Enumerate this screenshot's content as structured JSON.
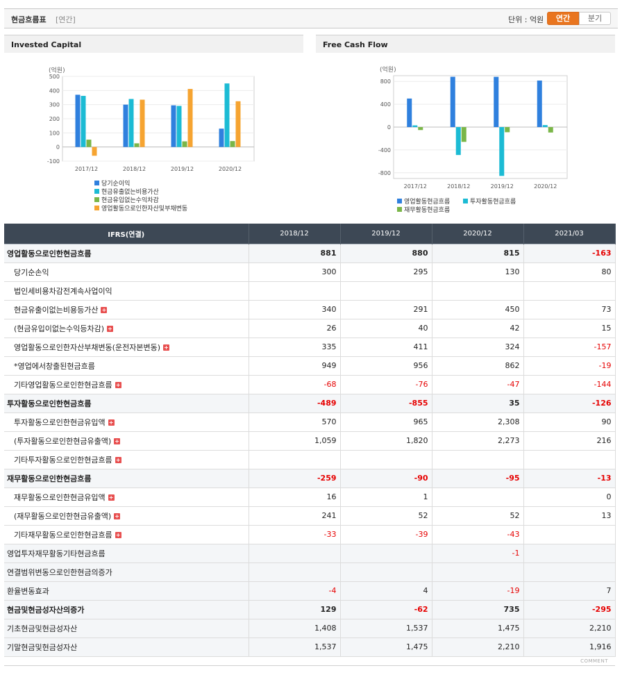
{
  "header": {
    "title": "현금흐름표",
    "period": "[연간]",
    "unit_label": "단위 : 억원",
    "toggle_annual": "연간",
    "toggle_quarter": "분기"
  },
  "colors": {
    "blue": "#2f80de",
    "cyan": "#1cbbd4",
    "green": "#7ab648",
    "orange": "#f6a431",
    "negative": "#e60000"
  },
  "chart_data": [
    {
      "type": "bar",
      "title": "Invested Capital",
      "ylabel": "(억원)",
      "ylim": [
        -100,
        500
      ],
      "yticks": [
        "500",
        "400",
        "300",
        "200",
        "100",
        "0",
        "-100"
      ],
      "categories": [
        "2017/12",
        "2018/12",
        "2019/12",
        "2020/12"
      ],
      "series": [
        {
          "name": "당기순이익",
          "color": "#2f80de",
          "values": [
            370,
            300,
            295,
            130
          ]
        },
        {
          "name": "현금유출없는비용가산",
          "color": "#1cbbd4",
          "values": [
            362,
            340,
            291,
            450
          ]
        },
        {
          "name": "현금유입없는수익차감",
          "color": "#7ab648",
          "values": [
            52,
            26,
            40,
            42
          ]
        },
        {
          "name": "영업활동으로인한자산및부채변동",
          "color": "#f6a431",
          "values": [
            -62,
            335,
            411,
            324
          ]
        }
      ]
    },
    {
      "type": "bar",
      "title": "Free Cash Flow",
      "ylabel": "(억원)",
      "ylim": [
        -900,
        900
      ],
      "yticks": [
        "800",
        "400",
        "0",
        "-400",
        "-800"
      ],
      "categories": [
        "2017/12",
        "2018/12",
        "2019/12",
        "2020/12"
      ],
      "series": [
        {
          "name": "영업활동현금흐름",
          "color": "#2f80de",
          "values": [
            500,
            881,
            880,
            815
          ]
        },
        {
          "name": "투자활동현금흐름",
          "color": "#1cbbd4",
          "values": [
            30,
            -489,
            -855,
            35
          ]
        },
        {
          "name": "재무활동현금흐름",
          "color": "#7ab648",
          "values": [
            -52,
            -259,
            -90,
            -95
          ]
        }
      ]
    }
  ],
  "table": {
    "header": [
      "IFRS(연결)",
      "2018/12",
      "2019/12",
      "2020/12",
      "2021/03"
    ],
    "rows": [
      {
        "label": "영업활동으로인한현금흐름",
        "major": true,
        "bold": true,
        "values": [
          "881",
          "880",
          "815",
          "-163"
        ]
      },
      {
        "label": "당기순손익",
        "sub": true,
        "values": [
          "300",
          "295",
          "130",
          "80"
        ]
      },
      {
        "label": "법인세비용차감전계속사업이익",
        "sub": true,
        "values": [
          "",
          "",
          "",
          ""
        ]
      },
      {
        "label": "현금유출이없는비용등가산",
        "sub": true,
        "plus": true,
        "values": [
          "340",
          "291",
          "450",
          "73"
        ]
      },
      {
        "label": "(현금유입이없는수익등차감)",
        "sub": true,
        "plus": true,
        "values": [
          "26",
          "40",
          "42",
          "15"
        ]
      },
      {
        "label": "영업활동으로인한자산부채변동(운전자본변동)",
        "sub": true,
        "plus": true,
        "values": [
          "335",
          "411",
          "324",
          "-157"
        ]
      },
      {
        "label": "*영업에서창출된현금흐름",
        "sub": true,
        "values": [
          "949",
          "956",
          "862",
          "-19"
        ]
      },
      {
        "label": "기타영업활동으로인한현금흐름",
        "sub": true,
        "plus": true,
        "values": [
          "-68",
          "-76",
          "-47",
          "-144"
        ]
      },
      {
        "label": "투자활동으로인한현금흐름",
        "major": true,
        "bold": true,
        "values": [
          "-489",
          "-855",
          "35",
          "-126"
        ]
      },
      {
        "label": "투자활동으로인한현금유입액",
        "sub": true,
        "plus": true,
        "values": [
          "570",
          "965",
          "2,308",
          "90"
        ]
      },
      {
        "label": "(투자활동으로인한현금유출액)",
        "sub": true,
        "plus": true,
        "values": [
          "1,059",
          "1,820",
          "2,273",
          "216"
        ]
      },
      {
        "label": "기타투자활동으로인한현금흐름",
        "sub": true,
        "plus": true,
        "values": [
          "",
          "",
          "",
          ""
        ]
      },
      {
        "label": "재무활동으로인한현금흐름",
        "major": true,
        "bold": true,
        "values": [
          "-259",
          "-90",
          "-95",
          "-13"
        ]
      },
      {
        "label": "재무활동으로인한현금유입액",
        "sub": true,
        "plus": true,
        "values": [
          "16",
          "1",
          "",
          "0"
        ]
      },
      {
        "label": "(재무활동으로인한현금유출액)",
        "sub": true,
        "plus": true,
        "values": [
          "241",
          "52",
          "52",
          "13"
        ]
      },
      {
        "label": "기타재무활동으로인한현금흐름",
        "sub": true,
        "plus": true,
        "values": [
          "-33",
          "-39",
          "-43",
          ""
        ]
      },
      {
        "label": "영업투자재무활동기타현금흐름",
        "major": true,
        "values": [
          "",
          "",
          "-1",
          ""
        ]
      },
      {
        "label": "연결범위변동으로인한현금의증가",
        "major": true,
        "values": [
          "",
          "",
          "",
          ""
        ]
      },
      {
        "label": "환율변동효과",
        "major": true,
        "values": [
          "-4",
          "4",
          "-19",
          "7"
        ]
      },
      {
        "label": "현금및현금성자산의증가",
        "major": true,
        "bold": true,
        "values": [
          "129",
          "-62",
          "735",
          "-295"
        ]
      },
      {
        "label": "기초현금및현금성자산",
        "major": true,
        "values": [
          "1,408",
          "1,537",
          "1,475",
          "2,210"
        ]
      },
      {
        "label": "기말현금및현금성자산",
        "major": true,
        "values": [
          "1,537",
          "1,475",
          "2,210",
          "1,916"
        ]
      }
    ]
  },
  "footer": {
    "comment": "COMMENT"
  }
}
